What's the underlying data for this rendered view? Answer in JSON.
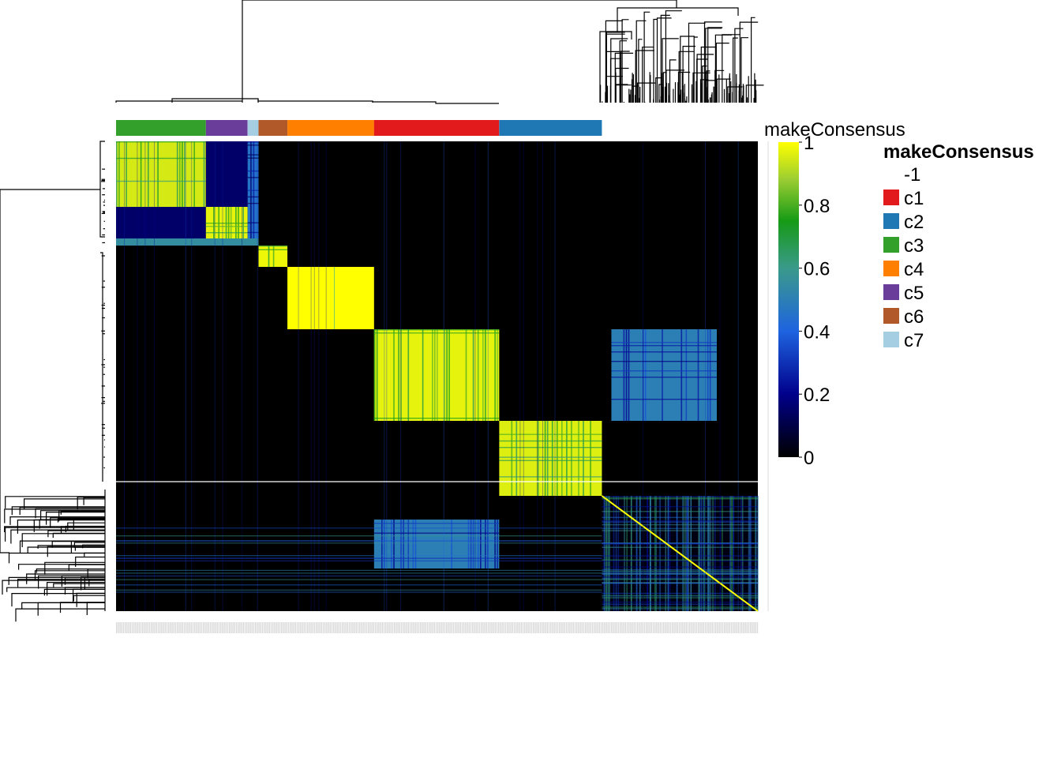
{
  "chart_data": {
    "type": "heatmap",
    "title": "",
    "annotation_name": "makeConsensus",
    "colorbar": {
      "title": "makeConsensus",
      "ticks": [
        0,
        0.2,
        0.4,
        0.6,
        0.8,
        1
      ],
      "tick_labels": [
        "0",
        "0.2",
        "0.4",
        "0.6",
        "0.8",
        "1"
      ],
      "range": [
        0,
        1
      ],
      "colors": [
        "#000000",
        "#00008b",
        "#1e64e0",
        "#3a9a8a",
        "#169a16",
        "#9acd32",
        "#ffff00"
      ]
    },
    "legend": {
      "title": "makeConsensus",
      "items": [
        {
          "label": "-1",
          "color": "#ffffff"
        },
        {
          "label": "c1",
          "color": "#e31a1c"
        },
        {
          "label": "c2",
          "color": "#1f78b4"
        },
        {
          "label": "c3",
          "color": "#33a02c"
        },
        {
          "label": "c4",
          "color": "#ff7f00"
        },
        {
          "label": "c5",
          "color": "#6a3d9a"
        },
        {
          "label": "c6",
          "color": "#b15928"
        },
        {
          "label": "c7",
          "color": "#a6cee3"
        }
      ]
    },
    "column_clusters": [
      {
        "cluster": "c3",
        "size": 14
      },
      {
        "cluster": "c5",
        "size": 6.5
      },
      {
        "cluster": "c7",
        "size": 1.7
      },
      {
        "cluster": "c6",
        "size": 4.5
      },
      {
        "cluster": "c4",
        "size": 13.5
      },
      {
        "cluster": "c1",
        "size": 19.5
      },
      {
        "cluster": "c2",
        "size": 16
      },
      {
        "cluster": "-1",
        "size": 24.3
      }
    ],
    "consensus_blocks": [
      {
        "rows": "c3",
        "cols": "c3",
        "value": 0.95
      },
      {
        "rows": "c3",
        "cols": "c5",
        "value": 0.15
      },
      {
        "rows": "c5",
        "cols": "c5",
        "value": 0.97
      },
      {
        "rows": "c7",
        "cols": "c7",
        "value": 0.98
      },
      {
        "rows": "c6",
        "cols": "c6",
        "value": 0.98
      },
      {
        "rows": "c4",
        "cols": "c4",
        "value": 1.0
      },
      {
        "rows": "c1",
        "cols": "c1",
        "value": 0.97
      },
      {
        "rows": "c2",
        "cols": "c2",
        "value": 0.96
      },
      {
        "rows": "c1",
        "cols": "-1",
        "value": 0.5
      },
      {
        "rows": "-1",
        "cols": "c1",
        "value": 0.5
      },
      {
        "rows": "-1",
        "cols": "-1",
        "value": 0.3
      }
    ]
  }
}
